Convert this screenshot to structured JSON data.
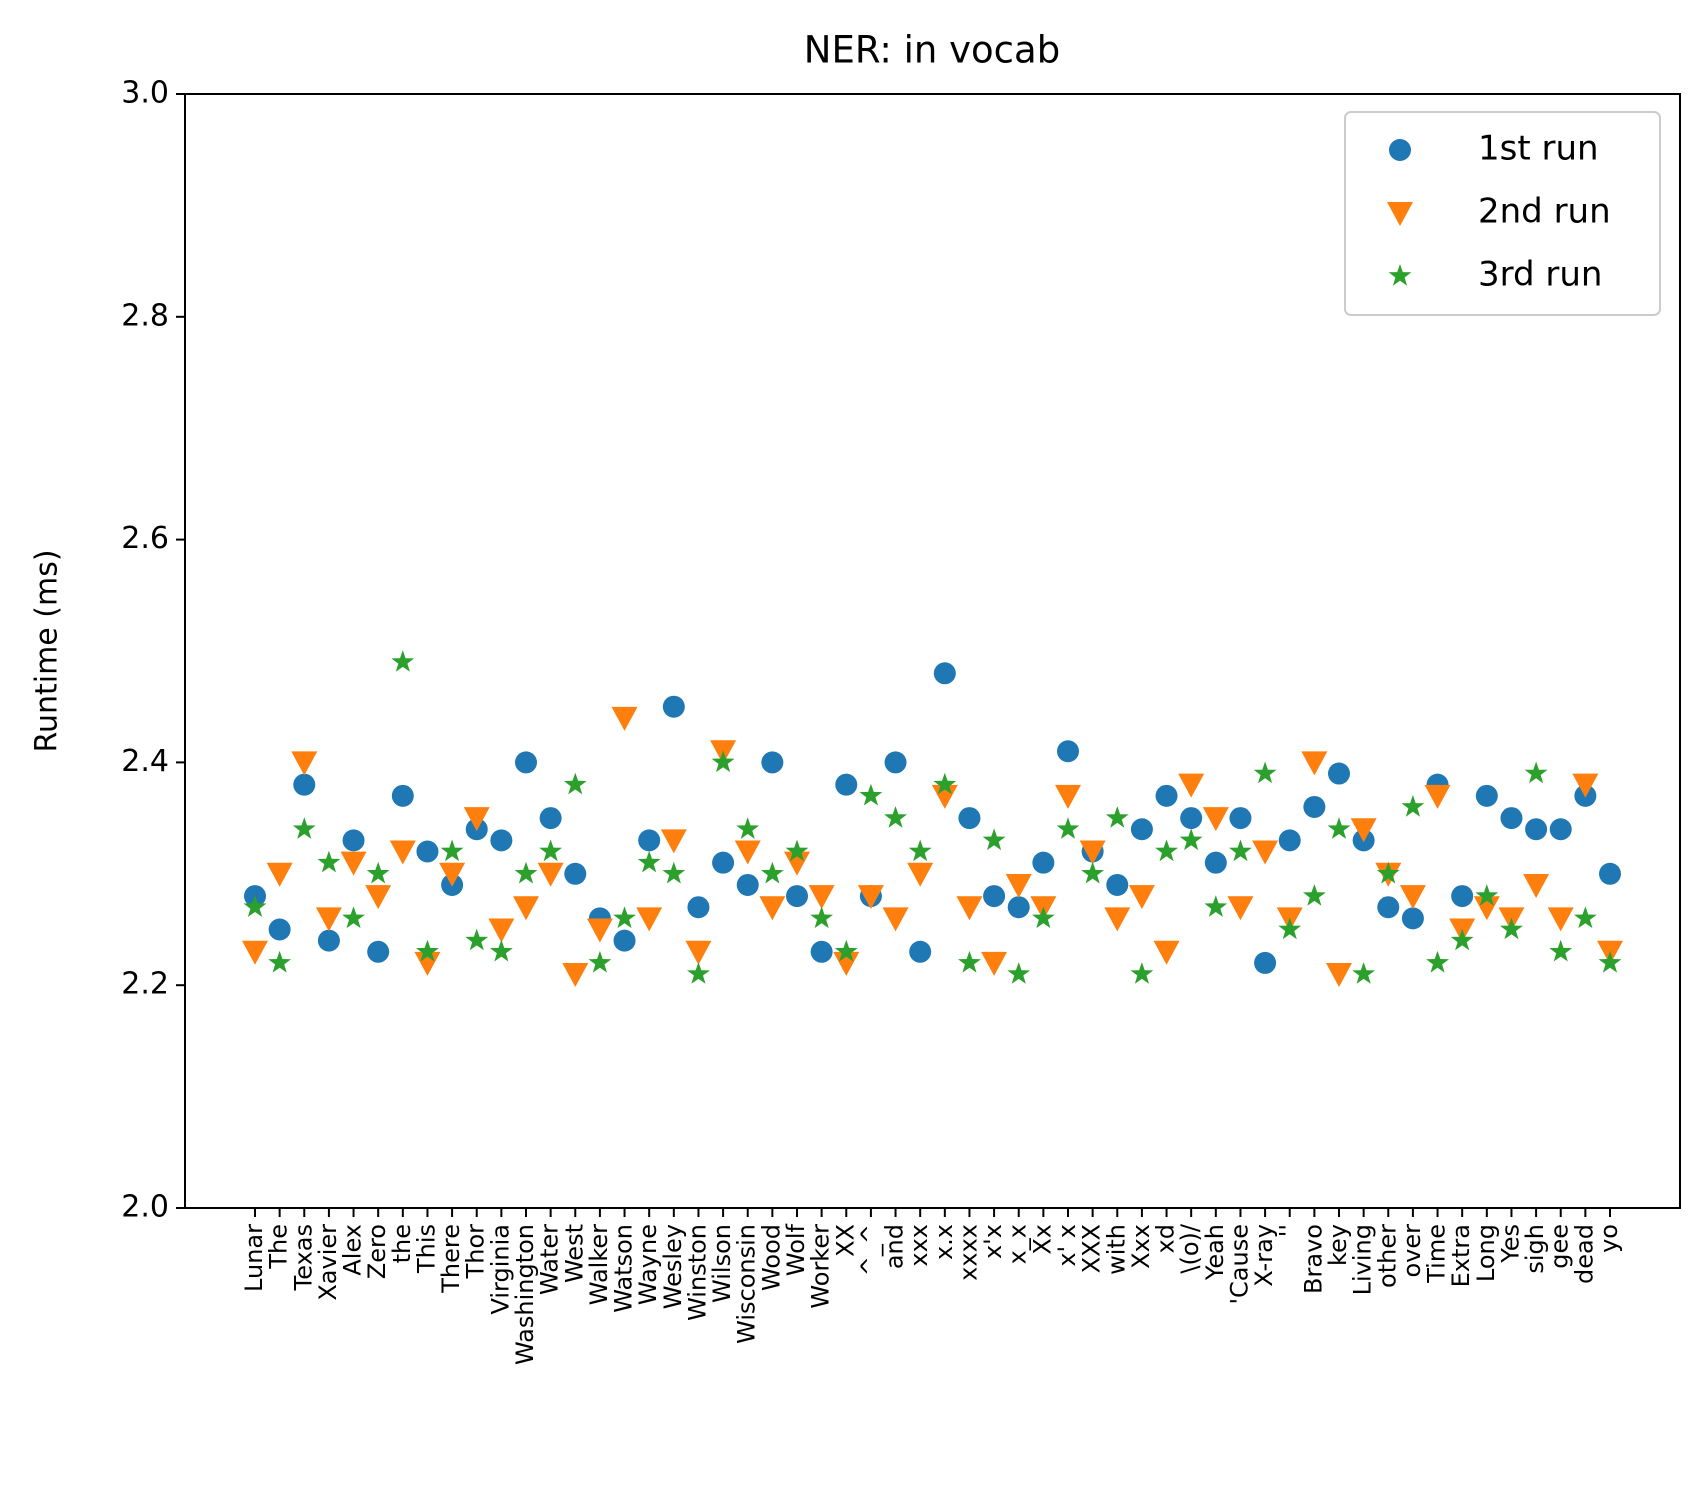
{
  "chart_data": {
    "type": "scatter",
    "title": "NER: in vocab",
    "ylabel": "Runtime (ms)",
    "categories": [
      "Lunar",
      "The",
      "Texas",
      "Xavier",
      "Alex",
      "Zero",
      "the",
      "This",
      "There",
      "Thor",
      "Virginia",
      "Washington",
      "Water",
      "West",
      "Walker",
      "Watson",
      "Wayne",
      "Wesley",
      "Winston",
      "Wilson",
      "Wisconsin",
      "Wood",
      "Wolf",
      "Worker",
      "XX",
      "^_^",
      "and",
      "xxx",
      "x.x",
      "xxxx",
      "x'x",
      "x_x",
      "Xx",
      "x' x",
      "XXX",
      "with",
      "Xxx",
      "xd",
      "\\(o)/",
      "Yeah",
      "'Cause",
      "X-ray",
      "''",
      "Bravo",
      "key",
      "Living",
      "other",
      "over",
      "Time",
      "Extra",
      "Long",
      "Yes",
      "sigh",
      "gee",
      "dead",
      "yo"
    ],
    "series": [
      {
        "name": "1st run",
        "color": "#1f77b4",
        "marker": "circle",
        "values": [
          2.28,
          2.25,
          2.38,
          2.24,
          2.33,
          2.23,
          2.37,
          2.32,
          2.29,
          2.34,
          2.33,
          2.4,
          2.35,
          2.3,
          2.26,
          2.24,
          2.33,
          2.45,
          2.27,
          2.31,
          2.29,
          2.4,
          2.28,
          2.23,
          2.38,
          2.28,
          2.4,
          2.23,
          2.48,
          2.35,
          2.28,
          2.27,
          2.31,
          2.41,
          2.32,
          2.29,
          2.34,
          2.37,
          2.35,
          2.31,
          2.35,
          2.22,
          2.33,
          2.36,
          2.39,
          2.33,
          2.27,
          2.26,
          2.38,
          2.28,
          2.37,
          2.35,
          2.34,
          2.34,
          2.37,
          2.3
        ]
      },
      {
        "name": "2nd run",
        "color": "#ff7f0e",
        "marker": "triangle_down",
        "values": [
          2.23,
          2.3,
          2.4,
          2.26,
          2.31,
          2.28,
          2.32,
          2.22,
          2.3,
          2.35,
          2.25,
          2.27,
          2.3,
          2.21,
          2.25,
          2.44,
          2.26,
          2.33,
          2.23,
          2.41,
          2.32,
          2.27,
          2.31,
          2.28,
          2.22,
          2.28,
          2.26,
          2.3,
          2.37,
          2.27,
          2.22,
          2.29,
          2.27,
          2.37,
          2.32,
          2.26,
          2.28,
          2.23,
          2.38,
          2.35,
          2.27,
          2.32,
          2.26,
          2.4,
          2.21,
          2.34,
          2.3,
          2.28,
          2.37,
          2.25,
          2.27,
          2.26,
          2.29,
          2.26,
          2.38,
          2.23
        ]
      },
      {
        "name": "3rd run",
        "color": "#2ca02c",
        "marker": "star",
        "values": [
          2.27,
          2.22,
          2.34,
          2.31,
          2.26,
          2.3,
          2.49,
          2.23,
          2.32,
          2.24,
          2.23,
          2.3,
          2.32,
          2.38,
          2.22,
          2.26,
          2.31,
          2.3,
          2.21,
          2.4,
          2.34,
          2.3,
          2.32,
          2.26,
          2.23,
          2.37,
          2.35,
          2.32,
          2.38,
          2.22,
          2.33,
          2.21,
          2.26,
          2.34,
          2.3,
          2.35,
          2.21,
          2.32,
          2.33,
          2.27,
          2.32,
          2.39,
          2.25,
          2.28,
          2.34,
          2.21,
          2.3,
          2.36,
          2.22,
          2.24,
          2.28,
          2.25,
          2.39,
          2.23,
          2.26,
          2.22
        ]
      }
    ],
    "ylim": [
      2.0,
      3.0
    ],
    "yticks": [
      {
        "value": 2.0,
        "label": "2.0"
      },
      2.2,
      2.4,
      2.6,
      2.8,
      {
        "value": 3.0,
        "label": "3.0"
      }
    ],
    "legend": "upper right"
  }
}
